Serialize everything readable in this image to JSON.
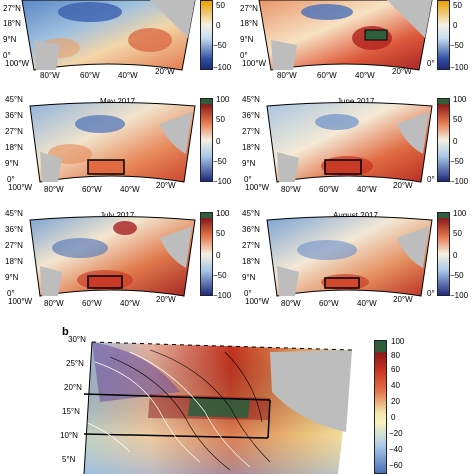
{
  "figure": {
    "panel_b_letter": "b",
    "map_panels": [
      {
        "id": "top-left",
        "title": ""
      },
      {
        "id": "top-right",
        "title": ""
      },
      {
        "id": "may-2017",
        "title": "May 2017"
      },
      {
        "id": "june-2017",
        "title": "June 2017"
      },
      {
        "id": "july-2017",
        "title": "July 2017"
      },
      {
        "id": "august-2017",
        "title": "August 2017"
      }
    ],
    "lat_labels_full": [
      "45°N",
      "36°N",
      "27°N",
      "18°N",
      "9°N",
      "0°"
    ],
    "lat_labels_top": [
      "27°N",
      "18°N",
      "9°N",
      "0°"
    ],
    "lon_labels_left": [
      "100°W",
      "80°W",
      "60°W",
      "40°W",
      "20°W"
    ],
    "lon_labels_right": [
      "100°W",
      "80°W",
      "60°W",
      "40°W",
      "20°W",
      "0°"
    ],
    "colorbar_ticks_small": [
      "100",
      "50",
      "0",
      "−50",
      "−100"
    ],
    "colorbar_ticks_top": [
      "50",
      "0",
      "−50",
      "−100"
    ],
    "panel_b": {
      "lat_labels": [
        "30°N",
        "25°N",
        "20°N",
        "15°N",
        "10°N",
        "5°N"
      ],
      "colorbar_ticks": [
        "100",
        "80",
        "60",
        "40",
        "20",
        "0",
        "−20",
        "−40",
        "−60"
      ]
    }
  },
  "colors": {
    "land": "#bdbdbd",
    "high": "#8b1a1a",
    "low": "#1e2a7a",
    "mid": "#fdfdf0",
    "box": "#000000"
  }
}
